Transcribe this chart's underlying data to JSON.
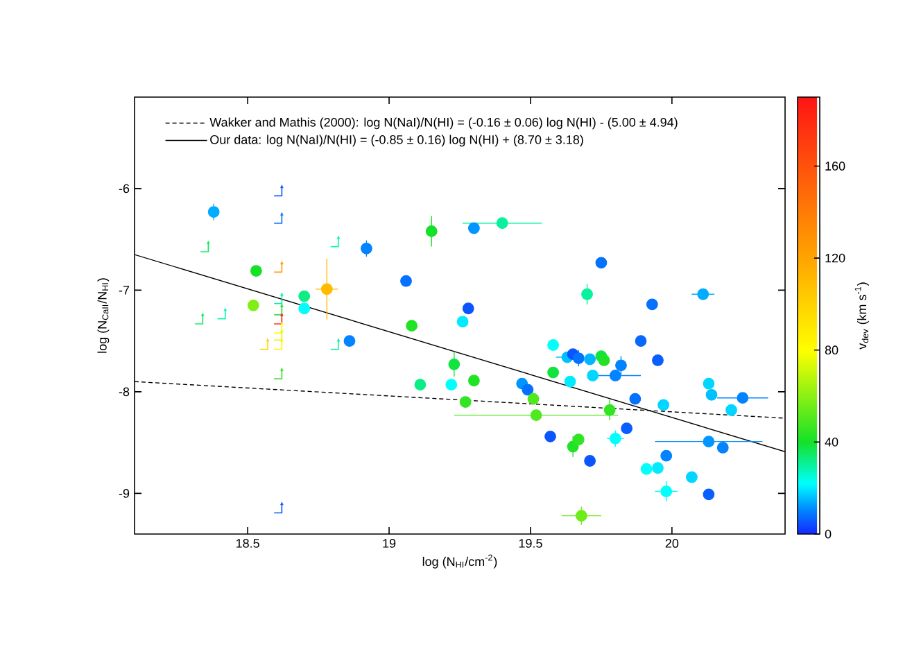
{
  "chart_data": {
    "type": "scatter",
    "xlabel": "log (N$_{HI}$/cm$^{-2}$)",
    "ylabel": "log (N$_{CaII}$/N$_{HI}$)",
    "clabel": "v$_{dev}$ (km s$^{-1}$)",
    "xlim": [
      18.1,
      20.4
    ],
    "ylim": [
      -9.4,
      -5.1
    ],
    "xticks": [
      18.5,
      19,
      19.5,
      20
    ],
    "yticks": [
      -9,
      -8,
      -7,
      -6
    ],
    "clim": [
      0,
      190
    ],
    "cticks": [
      0,
      40,
      80,
      120,
      160
    ],
    "legend": "top left",
    "series": [
      {
        "type": "line",
        "name": "Wakker and Mathis (2000): log N(NaI)/N(HI) = (-0.16 ± 0.06) log N(HI) - (5.00 ± 4.94)",
        "color": "#000000",
        "line_style": "dashed",
        "x": [
          18.1,
          20.4
        ],
        "values": [
          -7.9,
          -8.26
        ]
      },
      {
        "type": "line",
        "name": "Our data: log N(NaI)/N(HI) = (-0.85 ± 0.16) log N(HI) + (8.70 ± 3.18)",
        "color": "#000000",
        "line_style": "solid",
        "x": [
          18.1,
          20.4
        ],
        "values": [
          -6.65,
          -8.59
        ]
      },
      {
        "type": "scatter",
        "marker": "circle",
        "x": [
          18.38,
          18.53,
          18.52,
          18.7,
          18.7,
          18.78,
          18.92,
          19.06,
          19.15,
          19.08,
          19.3,
          19.28,
          19.26,
          18.86,
          19.4,
          19.75,
          19.7,
          19.93,
          20.11,
          19.58,
          19.89,
          19.63,
          19.65,
          19.67,
          19.71,
          19.75,
          19.76,
          19.82,
          19.72,
          19.8,
          19.95,
          19.58,
          19.64,
          19.3,
          19.47,
          19.49,
          19.51,
          19.27,
          19.52,
          19.78,
          19.87,
          19.97,
          20.13,
          20.14,
          20.25,
          20.21,
          19.57,
          19.65,
          19.67,
          19.71,
          19.84,
          19.8,
          19.91,
          19.95,
          19.98,
          20.07,
          19.98,
          20.13,
          20.13,
          20.18,
          19.68,
          19.23,
          19.11,
          19.22
        ],
        "values": [
          -6.23,
          -6.81,
          -7.15,
          -7.06,
          -7.18,
          -6.99,
          -6.59,
          -6.91,
          -6.42,
          -7.35,
          -6.39,
          -7.18,
          -7.31,
          -7.5,
          -6.34,
          -6.73,
          -7.04,
          -7.14,
          -7.04,
          -7.54,
          -7.5,
          -7.66,
          -7.63,
          -7.67,
          -7.68,
          -7.65,
          -7.69,
          -7.74,
          -7.84,
          -7.84,
          -7.69,
          -7.81,
          -7.9,
          -7.89,
          -7.92,
          -7.98,
          -8.07,
          -8.1,
          -8.23,
          -8.18,
          -8.07,
          -8.13,
          -7.92,
          -8.03,
          -8.06,
          -8.18,
          -8.44,
          -8.54,
          -8.47,
          -8.68,
          -8.36,
          -8.46,
          -8.76,
          -8.75,
          -8.63,
          -8.84,
          -8.98,
          -9.01,
          -8.49,
          -8.55,
          -9.22,
          -7.73,
          -7.93,
          -7.93
        ],
        "cvalues": [
          14,
          40,
          58,
          32,
          22,
          110,
          10,
          8,
          40,
          42,
          12,
          5,
          20,
          10,
          30,
          8,
          30,
          8,
          14,
          22,
          7,
          16,
          5,
          8,
          15,
          38,
          42,
          10,
          18,
          10,
          6,
          38,
          20,
          42,
          12,
          8,
          50,
          45,
          50,
          45,
          8,
          18,
          18,
          16,
          10,
          18,
          5,
          42,
          45,
          5,
          6,
          22,
          22,
          20,
          10,
          18,
          22,
          6,
          12,
          10,
          55,
          38,
          32,
          22
        ],
        "colors": [
          "#00acff",
          "#15e128",
          "#7fef16",
          "#0bee86",
          "#00fffd",
          "#ffbb00",
          "#0283ff",
          "#0571ff",
          "#15e128",
          "#20e326",
          "#0096ff",
          "#0b55ff",
          "#00ebff",
          "#0283ff",
          "#09f19e",
          "#0571ff",
          "#09f19e",
          "#0571ff",
          "#00acff",
          "#00fffd",
          "#0768ff",
          "#00c1ff",
          "#0b55ff",
          "#0571ff",
          "#00b6ff",
          "#12e43f",
          "#20e326",
          "#0283ff",
          "#00d6ff",
          "#0283ff",
          "#095eff",
          "#12e43f",
          "#00ebff",
          "#20e326",
          "#0096ff",
          "#0571ff",
          "#4fe91e",
          "#32e523",
          "#4fe91e",
          "#32e523",
          "#0571ff",
          "#00d6ff",
          "#00d6ff",
          "#00c1ff",
          "#0283ff",
          "#00d6ff",
          "#0b55ff",
          "#20e326",
          "#32e523",
          "#0b55ff",
          "#095eff",
          "#00fffd",
          "#00fffd",
          "#00ebff",
          "#0283ff",
          "#00d6ff",
          "#00fffd",
          "#095eff",
          "#0096ff",
          "#0283ff",
          "#6dec19",
          "#12e43f",
          "#0bee86",
          "#00fffd"
        ],
        "errors": [
          0.08,
          null,
          null,
          null,
          null,
          0.3,
          0.08,
          null,
          0.15,
          null,
          null,
          null,
          null,
          null,
          null,
          null,
          0.1,
          null,
          null,
          null,
          null,
          null,
          null,
          0.08,
          null,
          null,
          null,
          0.09,
          null,
          null,
          null,
          null,
          null,
          null,
          null,
          null,
          null,
          null,
          null,
          0.1,
          null,
          null,
          null,
          null,
          null,
          null,
          null,
          0.1,
          null,
          null,
          null,
          0.08,
          null,
          null,
          null,
          null,
          0.1,
          null,
          null,
          null,
          0.09,
          0.12,
          null,
          null
        ],
        "xerrors": [
          null,
          null,
          null,
          null,
          null,
          0.04,
          null,
          null,
          null,
          null,
          null,
          null,
          null,
          null,
          0.14,
          null,
          null,
          null,
          0.04,
          null,
          null,
          0.04,
          null,
          null,
          null,
          null,
          null,
          null,
          null,
          0.09,
          null,
          null,
          null,
          null,
          null,
          null,
          null,
          null,
          0.29,
          null,
          null,
          null,
          null,
          null,
          0.09,
          null,
          null,
          null,
          null,
          null,
          null,
          0.03,
          null,
          null,
          null,
          null,
          0.04,
          null,
          0.19,
          null,
          0.07,
          null,
          null,
          null
        ]
      },
      {
        "type": "scatter",
        "x": [
          18.61,
          18.61,
          18.35,
          18.81,
          18.61,
          18.61,
          18.61,
          18.61,
          18.33,
          18.41,
          18.61,
          18.61,
          18.56,
          18.61,
          18.81,
          18.61,
          18.61
        ],
        "values": [
          -6.02,
          -6.29,
          -6.57,
          -6.52,
          -6.77,
          -7.08,
          -7.19,
          -7.28,
          -7.28,
          -7.23,
          -7.37,
          -7.44,
          -7.53,
          -7.53,
          -7.53,
          -7.82,
          -9.14
        ],
        "cvalues": [
          5,
          8,
          35,
          28,
          125,
          30,
          40,
          185,
          35,
          28,
          80,
          75,
          100,
          85,
          30,
          45,
          5
        ],
        "colors": [
          "#0b55ff",
          "#0571ff",
          "#0fe962",
          "#07f5b6",
          "#ff9a02",
          "#09f19e",
          "#15e128",
          "#ff1e13",
          "#0fe962",
          "#07f5b6",
          "#ffff00",
          "#e3fb05",
          "#ffd100",
          "#fff300",
          "#09f19e",
          "#32e523",
          "#0b55ff"
        ]
      }
    ]
  }
}
